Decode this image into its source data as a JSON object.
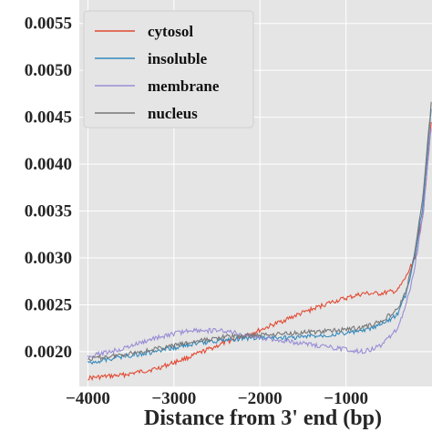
{
  "chart_data": {
    "type": "line",
    "title": "",
    "xlabel": "Distance from 3' end (bp)",
    "ylabel": "",
    "xlim": [
      -4100,
      0
    ],
    "ylim": [
      0.00163,
      0.00575
    ],
    "xticks": [
      -4000,
      -3000,
      -2000,
      -1000
    ],
    "xtick_labels": [
      "−4000",
      "−3000",
      "−2000",
      "−1000"
    ],
    "yticks": [
      0.002,
      0.0025,
      0.003,
      0.0035,
      0.004,
      0.0045,
      0.005,
      0.0055
    ],
    "ytick_labels": [
      "0.0020",
      "0.0025",
      "0.0030",
      "0.0035",
      "0.0040",
      "0.0045",
      "0.0050",
      "0.0055"
    ],
    "grid": true,
    "background": "#e5e5e5",
    "grid_color": "#ffffff",
    "legend_position": "top-left",
    "series": [
      {
        "name": "cytosol",
        "color": "#e24a33",
        "x": [
          -4000,
          -3600,
          -3200,
          -2800,
          -2400,
          -2000,
          -1600,
          -1200,
          -800,
          -600,
          -400,
          -300,
          -200,
          -100,
          -10
        ],
        "y": [
          0.00172,
          0.00175,
          0.00182,
          0.00195,
          0.0021,
          0.00223,
          0.00238,
          0.00252,
          0.00262,
          0.00262,
          0.00265,
          0.0028,
          0.003,
          0.0035,
          0.00445
        ]
      },
      {
        "name": "insoluble",
        "color": "#348abd",
        "x": [
          -4000,
          -3600,
          -3200,
          -2800,
          -2400,
          -2000,
          -1600,
          -1200,
          -800,
          -600,
          -400,
          -300,
          -200,
          -100,
          -10
        ],
        "y": [
          0.00188,
          0.00195,
          0.002,
          0.00208,
          0.00213,
          0.00215,
          0.00215,
          0.00218,
          0.00222,
          0.00228,
          0.0024,
          0.00262,
          0.003,
          0.0036,
          0.0046
        ]
      },
      {
        "name": "membrane",
        "color": "#988ed5",
        "x": [
          -4000,
          -3600,
          -3200,
          -2800,
          -2400,
          -2000,
          -1600,
          -1200,
          -800,
          -600,
          -400,
          -300,
          -200,
          -100,
          -10
        ],
        "y": [
          0.00195,
          0.00203,
          0.00215,
          0.00223,
          0.00222,
          0.00215,
          0.0021,
          0.00205,
          0.002,
          0.00206,
          0.00225,
          0.0025,
          0.0029,
          0.0035,
          0.0044
        ]
      },
      {
        "name": "nucleus",
        "color": "#777777",
        "x": [
          -4000,
          -3600,
          -3200,
          -2800,
          -2400,
          -2000,
          -1600,
          -1200,
          -800,
          -600,
          -400,
          -300,
          -200,
          -100,
          -10
        ],
        "y": [
          0.00192,
          0.00197,
          0.00203,
          0.0021,
          0.00216,
          0.00218,
          0.0022,
          0.00222,
          0.00226,
          0.00232,
          0.00245,
          0.00265,
          0.00305,
          0.0037,
          0.00465
        ]
      }
    ]
  }
}
